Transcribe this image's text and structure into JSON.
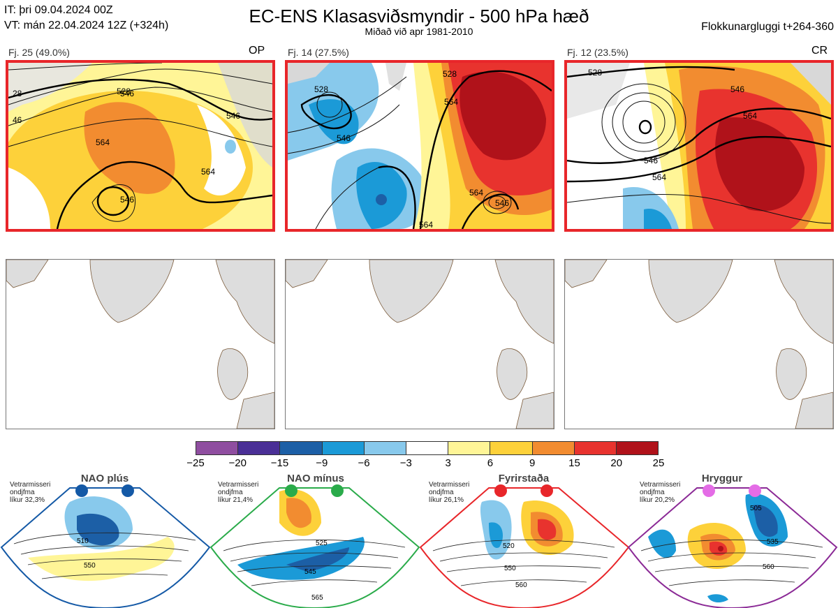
{
  "header": {
    "it": "IT: þri 09.04.2024 00Z",
    "vt": "VT: mán 22.04.2024 12Z  (+324h)",
    "title": "EC-ENS Klasasviðsmyndir - 500 hPa hæð",
    "subtitle": "Miðað við apr 1981-2010",
    "window": "Flokkunargluggi t+264-360"
  },
  "panels": [
    {
      "label": "Fj. 25 (49.0%)",
      "tag": "OP",
      "contours": [
        "528",
        "546",
        "546",
        "564",
        "546",
        "564",
        "546",
        "564",
        "28",
        "46"
      ]
    },
    {
      "label": "Fj. 14 (27.5%)",
      "tag": "",
      "contours": [
        "528",
        "546",
        "528",
        "564",
        "564",
        "546",
        "564"
      ]
    },
    {
      "label": "Fj. 12 (23.5%)",
      "tag": "CR",
      "contours": [
        "528",
        "546",
        "564",
        "546",
        "564"
      ]
    }
  ],
  "colorbar": {
    "colors": [
      "#8f4ea0",
      "#4a2f96",
      "#1c5fa6",
      "#1b9ad7",
      "#88c9ec",
      "#ffffff",
      "#fff597",
      "#fdd13a",
      "#f28c30",
      "#e8332e",
      "#b0121a"
    ],
    "ticks": [
      "−25",
      "−20",
      "−15",
      "−9",
      "−6",
      "−3",
      "3",
      "6",
      "9",
      "15",
      "20",
      "25"
    ]
  },
  "regimes": [
    {
      "title": "NAO plús",
      "note1": "Vetrarmisseri",
      "note2": "ondjfma",
      "note3": "líkur 32,3%",
      "dot": "#1459a6",
      "border": "#1459a6",
      "labels": [
        "510",
        "550"
      ]
    },
    {
      "title": "NAO mínus",
      "note1": "Vetrarmisseri",
      "note2": "ondjfma",
      "note3": "líkur 21,4%",
      "dot": "#2aab4a",
      "border": "#2aab4a",
      "labels": [
        "525",
        "545",
        "565"
      ]
    },
    {
      "title": "Fyrirstaða",
      "note1": "Vetrarmisseri",
      "note2": "ondjfma",
      "note3": "líkur 26,1%",
      "dot": "#e8262a",
      "border": "#e8262a",
      "labels": [
        "520",
        "550",
        "560"
      ]
    },
    {
      "title": "Hryggur",
      "note1": "Vetrarmisseri",
      "note2": "ondjfma",
      "note3": "líkur 20,2%",
      "dot": "#e46ce6",
      "border": "#8b2a96",
      "labels": [
        "505",
        "535",
        "560"
      ]
    }
  ]
}
